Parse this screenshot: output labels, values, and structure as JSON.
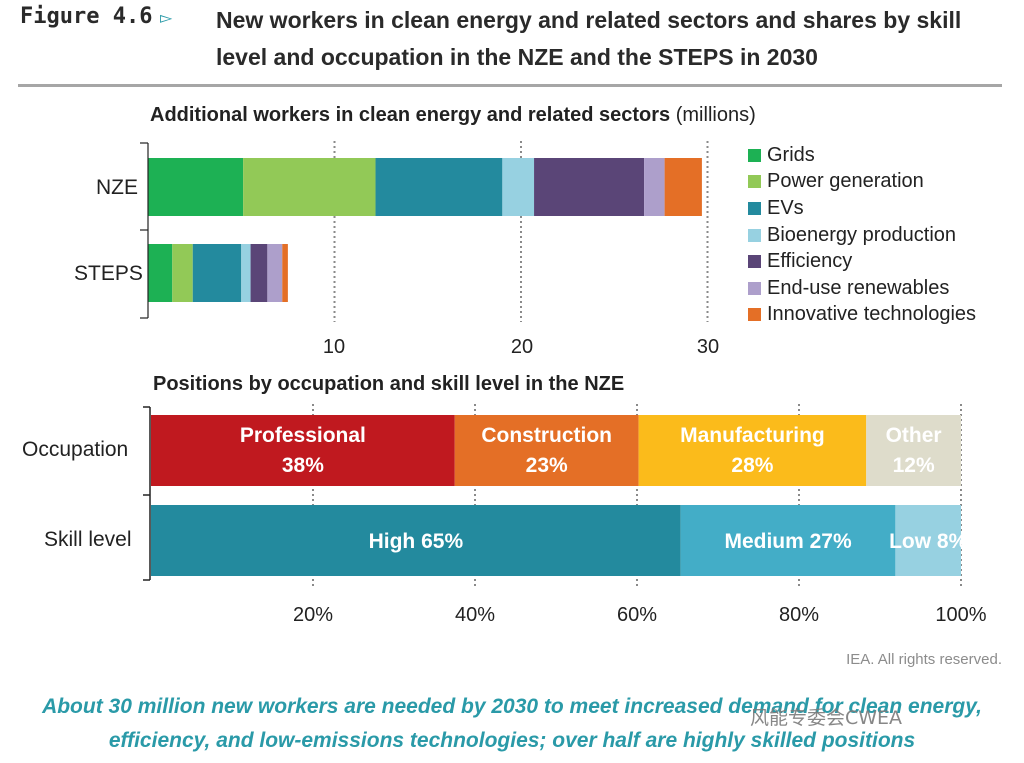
{
  "figure": {
    "label": "Figure 4.6",
    "arrow": "▻",
    "title": "New workers in clean energy and related sectors and shares by skill level and occupation in the NZE and the STEPS in 2030"
  },
  "chart_data": [
    {
      "type": "bar",
      "orientation": "horizontal",
      "stacked": true,
      "title": "Additional workers in clean energy and related sectors",
      "title_unit": "(millions)",
      "categories": [
        "NZE",
        "STEPS"
      ],
      "series": [
        {
          "name": "Grids",
          "color": "#1db154",
          "values": [
            5.1,
            1.3
          ]
        },
        {
          "name": "Power generation",
          "color": "#92c957",
          "values": [
            7.1,
            1.1
          ]
        },
        {
          "name": "EVs",
          "color": "#238a9e",
          "values": [
            6.8,
            2.6
          ]
        },
        {
          "name": "Bioenergy production",
          "color": "#97d1e1",
          "values": [
            1.7,
            0.5
          ]
        },
        {
          "name": "Efficiency",
          "color": "#5a4577",
          "values": [
            5.9,
            0.9
          ]
        },
        {
          "name": "End-use renewables",
          "color": "#ad9fcb",
          "values": [
            1.1,
            0.8
          ]
        },
        {
          "name": "Innovative technologies",
          "color": "#e46f26",
          "values": [
            2.0,
            0.3
          ]
        }
      ],
      "xlim": [
        0,
        30
      ],
      "xticks": [
        10,
        20,
        30
      ],
      "legend": "right"
    },
    {
      "type": "bar",
      "orientation": "horizontal",
      "stacked": true,
      "title": "Positions by occupation and skill level in the NZE",
      "categories": [
        "Occupation",
        "Skill level"
      ],
      "rows": [
        {
          "category": "Occupation",
          "segments": [
            {
              "label": "Professional",
              "pct_label": "38%",
              "value": 37.5,
              "color": "#c0191f",
              "text_color": "#ffffff"
            },
            {
              "label": "Construction",
              "pct_label": "23%",
              "value": 22.7,
              "color": "#e46f26",
              "text_color": "#ffffff"
            },
            {
              "label": "Manufacturing",
              "pct_label": "28%",
              "value": 28.1,
              "color": "#fbbb1b",
              "text_color": "#ffffff"
            },
            {
              "label": "Other",
              "pct_label": "12%",
              "value": 11.7,
              "color": "#dedccb",
              "text_color": "#ffffff"
            }
          ]
        },
        {
          "category": "Skill level",
          "segments": [
            {
              "label": "High 65%",
              "value": 65.4,
              "color": "#238a9e",
              "text_color": "#ffffff"
            },
            {
              "label": "Medium 27%",
              "value": 26.5,
              "color": "#43adc7",
              "text_color": "#ffffff"
            },
            {
              "label": "Low 8%",
              "value": 8.1,
              "color": "#97d1e1",
              "text_color": "#ffffff"
            }
          ]
        }
      ],
      "xlim": [
        0,
        100
      ],
      "xticks": [
        "20%",
        "40%",
        "60%",
        "80%",
        "100%"
      ],
      "xtick_values": [
        20,
        40,
        60,
        80,
        100
      ]
    }
  ],
  "copyright": "IEA. All rights reserved.",
  "caption": "About 30 million new workers are needed by 2030 to meet increased demand for clean energy, efficiency, and low-emissions technologies; over half are highly skilled positions",
  "watermark": "风能专委会CWEA"
}
